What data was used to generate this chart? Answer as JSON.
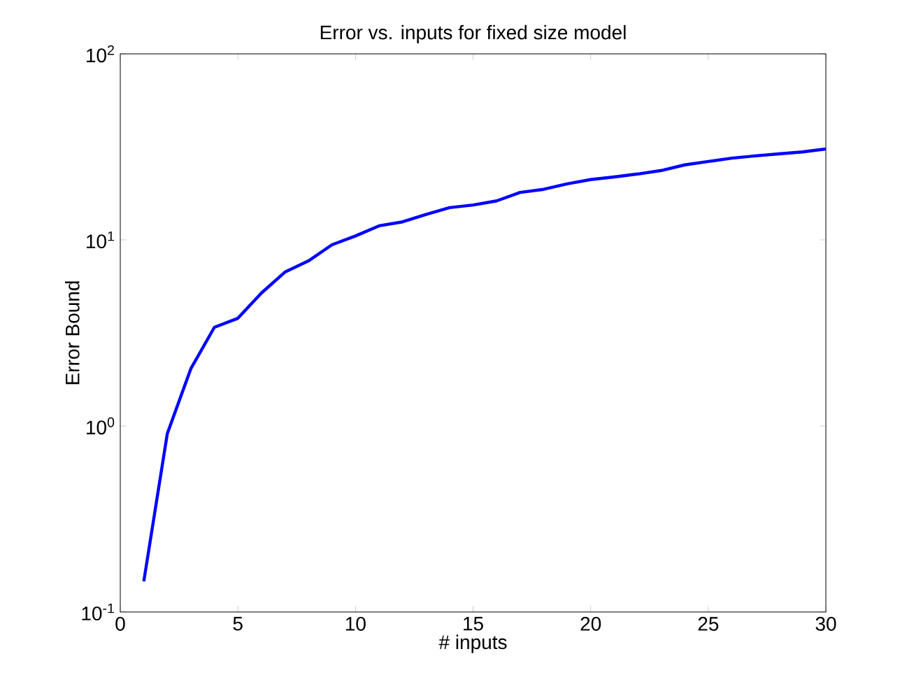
{
  "chart_data": {
    "type": "line",
    "title": "Error vs. inputs for fixed size model",
    "xlabel": "# inputs",
    "ylabel": "Error Bound",
    "x": [
      1,
      2,
      3,
      4,
      5,
      6,
      7,
      8,
      9,
      10,
      11,
      12,
      13,
      14,
      15,
      16,
      17,
      18,
      19,
      20,
      21,
      22,
      23,
      24,
      25,
      26,
      27,
      28,
      29,
      30
    ],
    "series": [
      {
        "color": "#0000ff",
        "values": [
          0.146,
          0.91,
          2.03,
          3.39,
          3.79,
          5.18,
          6.71,
          7.71,
          9.41,
          10.5,
          11.9,
          12.5,
          13.7,
          14.9,
          15.4,
          16.2,
          18.0,
          18.7,
          20.0,
          21.1,
          21.8,
          22.6,
          23.6,
          25.3,
          26.4,
          27.5,
          28.3,
          29.0,
          29.7,
          30.8
        ]
      }
    ],
    "xlim": [
      0,
      30
    ],
    "xticks": [
      0,
      5,
      10,
      15,
      20,
      25,
      30
    ],
    "ylim": [
      0.1,
      100
    ],
    "yticks": [
      {
        "value": 0.1,
        "label": "10$^{-1}$"
      },
      {
        "value": 1,
        "label": "10$^{0}$"
      },
      {
        "value": 10,
        "label": "10$^{1}$"
      },
      {
        "value": 100,
        "label": "10$^{2}$"
      }
    ],
    "log": "y",
    "grid": false,
    "marker": "none",
    "line_style": "solid"
  }
}
